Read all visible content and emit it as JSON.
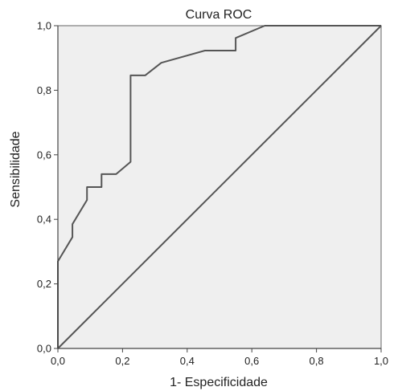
{
  "chart_data": {
    "type": "line",
    "title": "Curva ROC",
    "xlabel": "1- Especificidade",
    "ylabel": "Sensibilidade",
    "xlim": [
      0,
      1
    ],
    "ylim": [
      0,
      1
    ],
    "xticks": [
      "0,0",
      "0,2",
      "0,4",
      "0,6",
      "0,8",
      "1,0"
    ],
    "yticks": [
      "0,0",
      "0,2",
      "0,4",
      "0,6",
      "0,8",
      "1,0"
    ],
    "grid": false,
    "colors": {
      "plot_bg": "#efefef",
      "line": "#555555",
      "outer_bg": "#ffffff"
    },
    "series": [
      {
        "x": [
          0.0,
          0.0,
          0.045,
          0.045,
          0.09,
          0.09,
          0.135,
          0.135,
          0.18,
          0.225,
          0.225,
          0.27,
          0.32,
          0.455,
          0.55,
          0.55,
          0.64,
          0.72,
          1.0
        ],
        "y": [
          0.0,
          0.27,
          0.345,
          0.385,
          0.46,
          0.5,
          0.5,
          0.54,
          0.54,
          0.578,
          0.846,
          0.846,
          0.885,
          0.923,
          0.923,
          0.962,
          1.0,
          1.0,
          1.0
        ]
      },
      {
        "x": [
          0,
          1
        ],
        "y": [
          0,
          1
        ]
      }
    ]
  }
}
